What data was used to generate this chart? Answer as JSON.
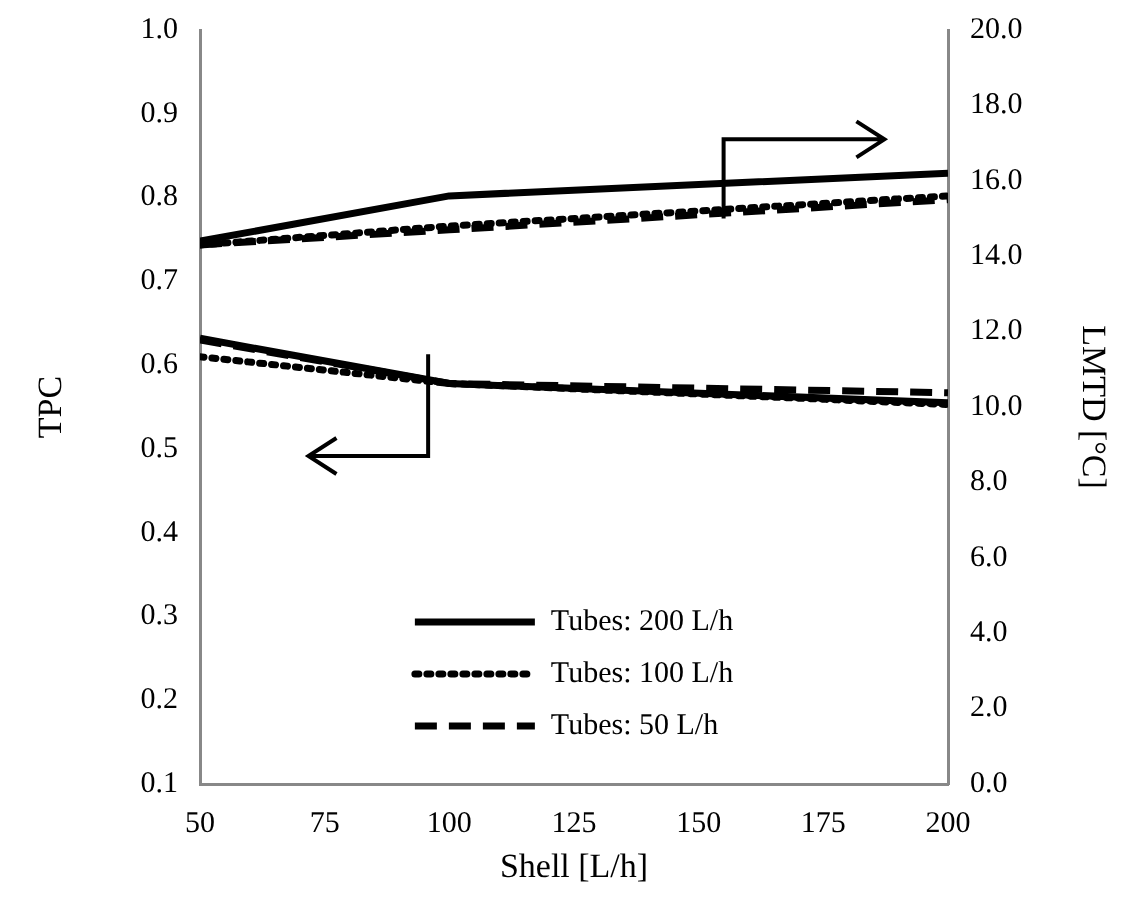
{
  "chart_data": {
    "type": "line",
    "xlabel": "Shell [L/h]",
    "ylabel": "TPC",
    "y2label": "LMTD [°C]",
    "x": [
      50,
      100,
      200
    ],
    "series": [
      {
        "name": "Tubes: 200 L/h",
        "color": "#000000",
        "line_style": "solid",
        "values": [
          0.632,
          0.578,
          0.555
        ]
      },
      {
        "name": "Tubes: 100 L/h",
        "color": "#000000",
        "line_style": "dotted",
        "values": [
          0.61,
          0.578,
          0.553
        ]
      },
      {
        "name": "Tubes: 50 L/h",
        "color": "#000000",
        "line_style": "dashed",
        "values": [
          0.63,
          0.578,
          0.567
        ]
      },
      {
        "color": "#000000",
        "line_style": "solid",
        "axis": "y2",
        "values": [
          14.4,
          15.6,
          16.2
        ]
      },
      {
        "color": "#000000",
        "line_style": "dotted",
        "axis": "y2",
        "values": [
          14.3,
          14.8,
          15.6
        ]
      },
      {
        "color": "#000000",
        "line_style": "dashed",
        "axis": "y2",
        "values": [
          14.3,
          14.7,
          15.5
        ]
      }
    ],
    "xlim": [
      50,
      200
    ],
    "xticks": [
      50,
      75,
      100,
      125,
      150,
      175,
      200
    ],
    "ylim": [
      0.1,
      1.0
    ],
    "yticks": [
      0.1,
      0.2,
      0.3,
      0.4,
      0.5,
      0.6,
      0.7,
      0.8,
      0.9,
      {
        "value": 1.0,
        "label": "1.0"
      }
    ],
    "y2lim": [
      0,
      20
    ],
    "y2ticks": [
      {
        "value": 0,
        "label": "0.0"
      },
      {
        "value": 2,
        "label": "2.0"
      },
      {
        "value": 4,
        "label": "4.0"
      },
      {
        "value": 6,
        "label": "6.0"
      },
      {
        "value": 8,
        "label": "8.0"
      },
      {
        "value": 10,
        "label": "10.0"
      },
      {
        "value": 12,
        "label": "12.0"
      },
      {
        "value": 14,
        "label": "14.0"
      },
      {
        "value": 16,
        "label": "16.0"
      },
      {
        "value": 18,
        "label": "18.0"
      },
      {
        "value": 20,
        "label": "20.0"
      }
    ],
    "grid": false,
    "legend": "bottom",
    "marker": "none"
  }
}
